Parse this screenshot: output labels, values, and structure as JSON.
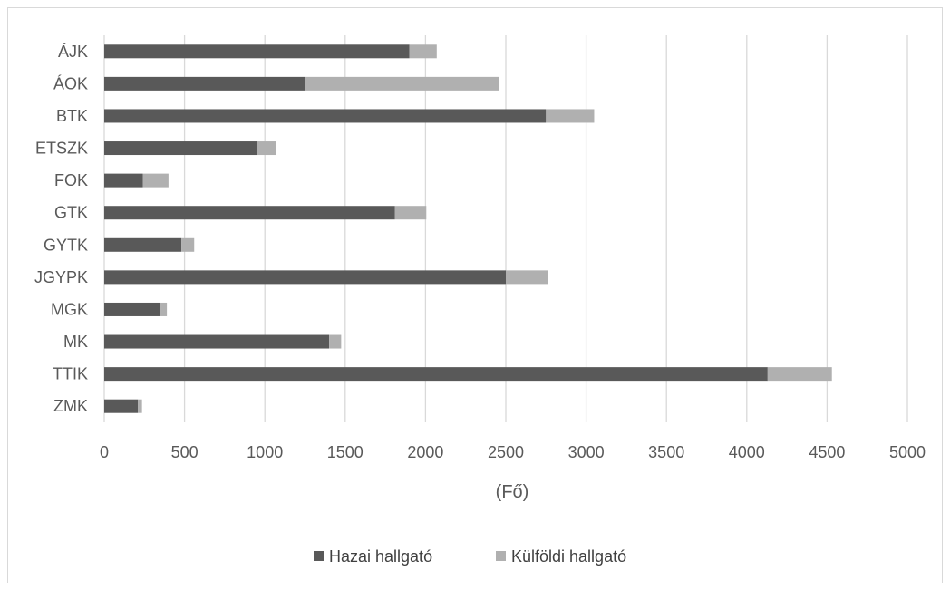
{
  "chart_data": {
    "type": "bar",
    "orientation": "horizontal",
    "stacked": true,
    "categories": [
      "ÁJK",
      "ÁOK",
      "BTK",
      "ETSZK",
      "FOK",
      "GTK",
      "GYTK",
      "JGYPK",
      "MGK",
      "MK",
      "TTIK",
      "ZMK"
    ],
    "series": [
      {
        "name": "Hazai hallgató",
        "color": "#595959",
        "values": [
          1900,
          1250,
          2750,
          950,
          240,
          1810,
          480,
          2500,
          350,
          1400,
          4130,
          210
        ]
      },
      {
        "name": "Külföldi hallgató",
        "color": "#b0b0b0",
        "values": [
          170,
          1210,
          300,
          120,
          160,
          195,
          80,
          260,
          40,
          75,
          400,
          25
        ]
      }
    ],
    "xlabel": "(Fő)",
    "ylabel": "",
    "xlim": [
      0,
      5000
    ],
    "xticks": [
      "0",
      "500",
      "1000",
      "1500",
      "2000",
      "2500",
      "3000",
      "3500",
      "4000",
      "4500",
      "5000"
    ],
    "grid": "vertical",
    "legend": "bottom"
  }
}
